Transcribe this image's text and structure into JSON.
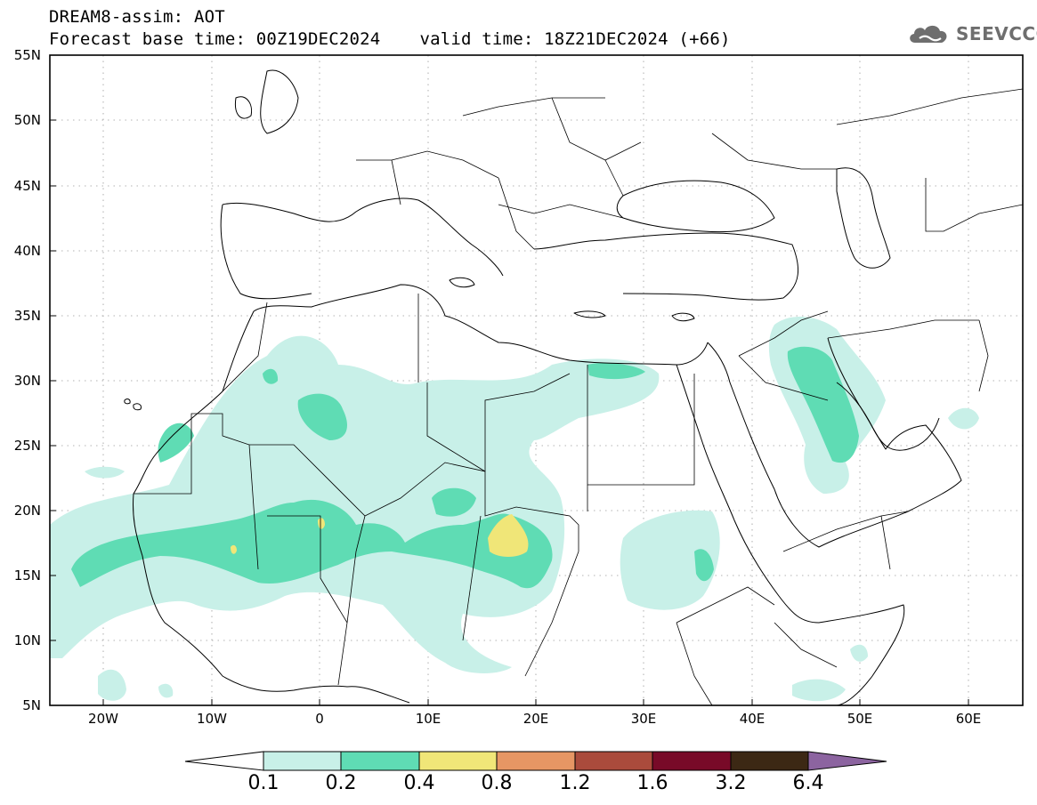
{
  "header": {
    "title": "DREAM8-assim: AOT",
    "base_time": "Forecast base time: 00Z19DEC2024",
    "valid_time": "valid time: 18Z21DEC2024 (+66)"
  },
  "logo": {
    "text": "SEEVCCC",
    "icon": "cloud-icon",
    "color": "#6e6e6e"
  },
  "map": {
    "projection": "lat-lon",
    "lon_range": [
      -25,
      65
    ],
    "lat_range": [
      5,
      55
    ],
    "gridlines": "dotted",
    "lat_labels": [
      "55N",
      "50N",
      "45N",
      "40N",
      "35N",
      "30N",
      "25N",
      "20N",
      "15N",
      "10N",
      "5N"
    ],
    "lon_labels": [
      "20W",
      "10W",
      "0",
      "10E",
      "20E",
      "30E",
      "40E",
      "50E",
      "60E"
    ]
  },
  "colorbar": {
    "labels": [
      "0.1",
      "0.2",
      "0.4",
      "0.8",
      "1.2",
      "1.6",
      "3.2",
      "6.4"
    ],
    "colors": [
      "#c8f0e8",
      "#5fdcb4",
      "#f0e678",
      "#e69664",
      "#aa4b3c",
      "#780a28",
      "#3c2814",
      "#8c64a0"
    ]
  }
}
